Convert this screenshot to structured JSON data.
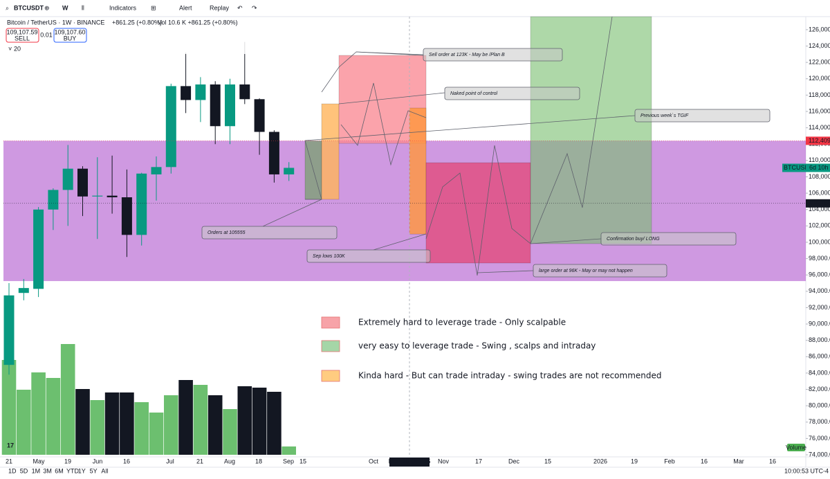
{
  "toolbar": {
    "symbol": "BTCUSDT",
    "interval": "W",
    "indicators": "Indicators",
    "alert": "Alert",
    "replay": "Replay"
  },
  "header": {
    "title": "Bitcoin / TetherUS · 1W · BINANCE",
    "change": "+861.25 (+0.80%)",
    "volume": "Vol 10.6 K +861.25 (+0.80%)",
    "sell_price": "109,107.59",
    "sell": "SELL",
    "spread": "0.01",
    "buy_price": "109,107.60",
    "buy": "BUY",
    "length": "20"
  },
  "chart_data": {
    "type": "candlestick",
    "open": [
      85000,
      93800,
      94300,
      104000,
      106400,
      109000,
      105600,
      105700,
      105500,
      100900,
      108300,
      109200,
      119100,
      117400,
      119300,
      114200,
      119300,
      117500,
      113500,
      108300
    ],
    "high": [
      95000,
      95500,
      104300,
      106600,
      111900,
      109300,
      110400,
      110600,
      108900,
      108500,
      110500,
      119400,
      123200,
      120200,
      119700,
      120000,
      124500,
      117600,
      113700,
      109800
    ],
    "low": [
      83800,
      92900,
      93300,
      101500,
      102000,
      103200,
      100400,
      103500,
      98200,
      99600,
      105100,
      108400,
      115800,
      114700,
      112000,
      112000,
      116900,
      110700,
      107300,
      107500
    ],
    "close": [
      93500,
      94400,
      104000,
      106400,
      109000,
      105600,
      105700,
      105500,
      100900,
      108400,
      109200,
      119100,
      117400,
      119300,
      114200,
      119300,
      117500,
      113500,
      108300,
      109100
    ],
    "volume": [
      137,
      94,
      119,
      111,
      160,
      95,
      79,
      90,
      90,
      76,
      61,
      86,
      108,
      101,
      86,
      66,
      99,
      97,
      91,
      12
    ],
    "vlim": [
      0,
      160
    ],
    "up_color": "#089981",
    "down_color": "#131722",
    "vol_up_color": "#6cbf6f",
    "vol_down_color": "#131722",
    "ylim": [
      73750,
      127600
    ],
    "yticks": [
      {
        "value": 74000,
        "label": "74,000.0"
      },
      {
        "value": 76000,
        "label": "76,000.0"
      },
      {
        "value": 78000,
        "label": "78,000.0"
      },
      {
        "value": 80000,
        "label": "80,000.0"
      },
      {
        "value": 82000,
        "label": "82,000.0"
      },
      {
        "value": 84000,
        "label": "84,000.0"
      },
      {
        "value": 86000,
        "label": "86,000.0"
      },
      {
        "value": 88000,
        "label": "88,000.0"
      },
      {
        "value": 90000,
        "label": "90,000.0"
      },
      {
        "value": 92000,
        "label": "92,000.0"
      },
      {
        "value": 94000,
        "label": "94,000.0"
      },
      {
        "value": 96000,
        "label": "96,000.0"
      },
      {
        "value": 98000,
        "label": "98,000.0"
      },
      {
        "value": 100000,
        "label": "100,000.0"
      },
      {
        "value": 102000,
        "label": "102,000.0"
      },
      {
        "value": 104000,
        "label": "104,000.0"
      },
      {
        "value": 106000,
        "label": "106,000.0"
      },
      {
        "value": 108000,
        "label": "108,000.0"
      },
      {
        "value": 110000,
        "label": "110,000.0"
      },
      {
        "value": 112000,
        "label": "112,000.0"
      },
      {
        "value": 114000,
        "label": "114,000.0"
      },
      {
        "value": 116000,
        "label": "116,000.0"
      },
      {
        "value": 118000,
        "label": "118,000.0"
      },
      {
        "value": 120000,
        "label": "120,000.0"
      },
      {
        "value": 122000,
        "label": "122,000.0"
      },
      {
        "value": 124000,
        "label": "124,000.0"
      },
      {
        "value": 126000,
        "label": "126,000.0"
      }
    ],
    "x_labels": [
      "21",
      "May",
      "19",
      "Jun",
      "16",
      "Jul",
      "21",
      "Aug",
      "18",
      "Sep",
      "15",
      "Oct",
      "Mon 20 Oct '25",
      "Nov",
      "17",
      "Dec",
      "15",
      "2026",
      "19",
      "Feb",
      "16",
      "Mar",
      "16"
    ],
    "price_tags": [
      {
        "value": 112409.8,
        "label": "112,409.8",
        "color": "#f23645"
      },
      {
        "value": 104756.1,
        "label": "104,756.1",
        "color": "#131722"
      }
    ],
    "last_tag": {
      "symbol": "BTCUSDT",
      "countdown": "6d 10h"
    },
    "zones": [
      {
        "low": 95250,
        "high": 112409.8,
        "color": "rgba(168,70,200,0.55)"
      },
      {
        "low": 105250,
        "high": 112400,
        "color": "rgba(120,160,110,0.75)"
      },
      {
        "low": 105250,
        "high": 116930,
        "color": "rgba(255,180,90,0.8)"
      },
      {
        "low": 112100,
        "high": 122860,
        "color": "rgba(250,140,150,0.8)"
      },
      {
        "low": 101000,
        "high": 116420,
        "color": "rgba(255,150,60,0.8)"
      },
      {
        "low": 97460,
        "high": 109730,
        "color": "rgba(225,80,130,0.85)"
      },
      {
        "low": 99830,
        "high": 128000,
        "color": "rgba(120,190,110,0.6)"
      }
    ]
  },
  "annotations": [
    "Sell order at 123K - May be /Plan B",
    "Naked point of control",
    "Previous week`s TGIF",
    "Orders at 105555",
    "Sep lows 100K",
    "Confirmation buy/ LONG",
    "large order at 96K - May or may not happen"
  ],
  "legend": [
    {
      "color": "#f7a3a8",
      "text": "Extremely hard to leverage trade - Only scalpable"
    },
    {
      "color": "#a5d6a7",
      "text": "very easy to leverage trade - Swing , scalps and intraday"
    },
    {
      "color": "#ffcc80",
      "text": "Kinda hard - But can trade intraday - swing trades are not recommended"
    }
  ],
  "volume_label": "Volume",
  "bottom_bar": {
    "ranges": [
      "1D",
      "5D",
      "1M",
      "3M",
      "6M",
      "YTD",
      "1Y",
      "5Y",
      "All"
    ],
    "clock": "10:00:53 UTC-4"
  }
}
